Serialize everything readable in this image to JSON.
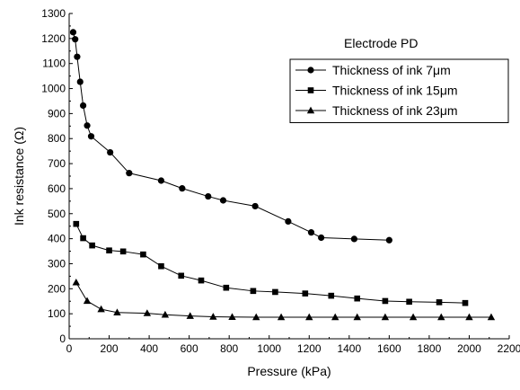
{
  "chart_data": {
    "type": "line",
    "annotation": "Electrode PD",
    "xlabel": "Pressure (kPa)",
    "ylabel": "Ink resistance (Ω)",
    "xlim": [
      0,
      2200
    ],
    "ylim": [
      0,
      1300
    ],
    "xticks": [
      0,
      200,
      400,
      600,
      800,
      1000,
      1200,
      1400,
      1600,
      1800,
      2000,
      2200
    ],
    "yticks": [
      0,
      100,
      200,
      300,
      400,
      500,
      600,
      700,
      800,
      900,
      1000,
      1100,
      1200,
      1300
    ],
    "grid": false,
    "legend_position": "top-right",
    "series": [
      {
        "name": "Thickness of ink 7μm",
        "marker": "circle",
        "x": [
          20,
          30,
          40,
          55,
          70,
          90,
          110,
          205,
          300,
          460,
          565,
          695,
          770,
          930,
          1095,
          1210,
          1260,
          1425,
          1600
        ],
        "y": [
          1225,
          1197,
          1127,
          1027,
          932,
          852,
          809,
          745,
          662,
          632,
          601,
          569,
          553,
          530,
          469,
          425,
          404,
          399,
          394
        ]
      },
      {
        "name": "Thickness of ink 15μm",
        "marker": "square",
        "x": [
          35,
          70,
          115,
          200,
          270,
          370,
          460,
          560,
          660,
          785,
          920,
          1030,
          1180,
          1310,
          1440,
          1580,
          1700,
          1850,
          1980
        ],
        "y": [
          459,
          402,
          373,
          353,
          349,
          337,
          290,
          252,
          233,
          204,
          191,
          187,
          181,
          172,
          161,
          151,
          148,
          146,
          143
        ]
      },
      {
        "name": "Thickness of ink 23μm",
        "marker": "triangle",
        "x": [
          35,
          90,
          160,
          240,
          390,
          480,
          605,
          720,
          815,
          935,
          1060,
          1200,
          1330,
          1440,
          1580,
          1720,
          1860,
          2000,
          2110
        ],
        "y": [
          225,
          151,
          118,
          105,
          102,
          96,
          91,
          88,
          87,
          86,
          86,
          86,
          86,
          86,
          86,
          86,
          86,
          86,
          86
        ]
      }
    ]
  }
}
